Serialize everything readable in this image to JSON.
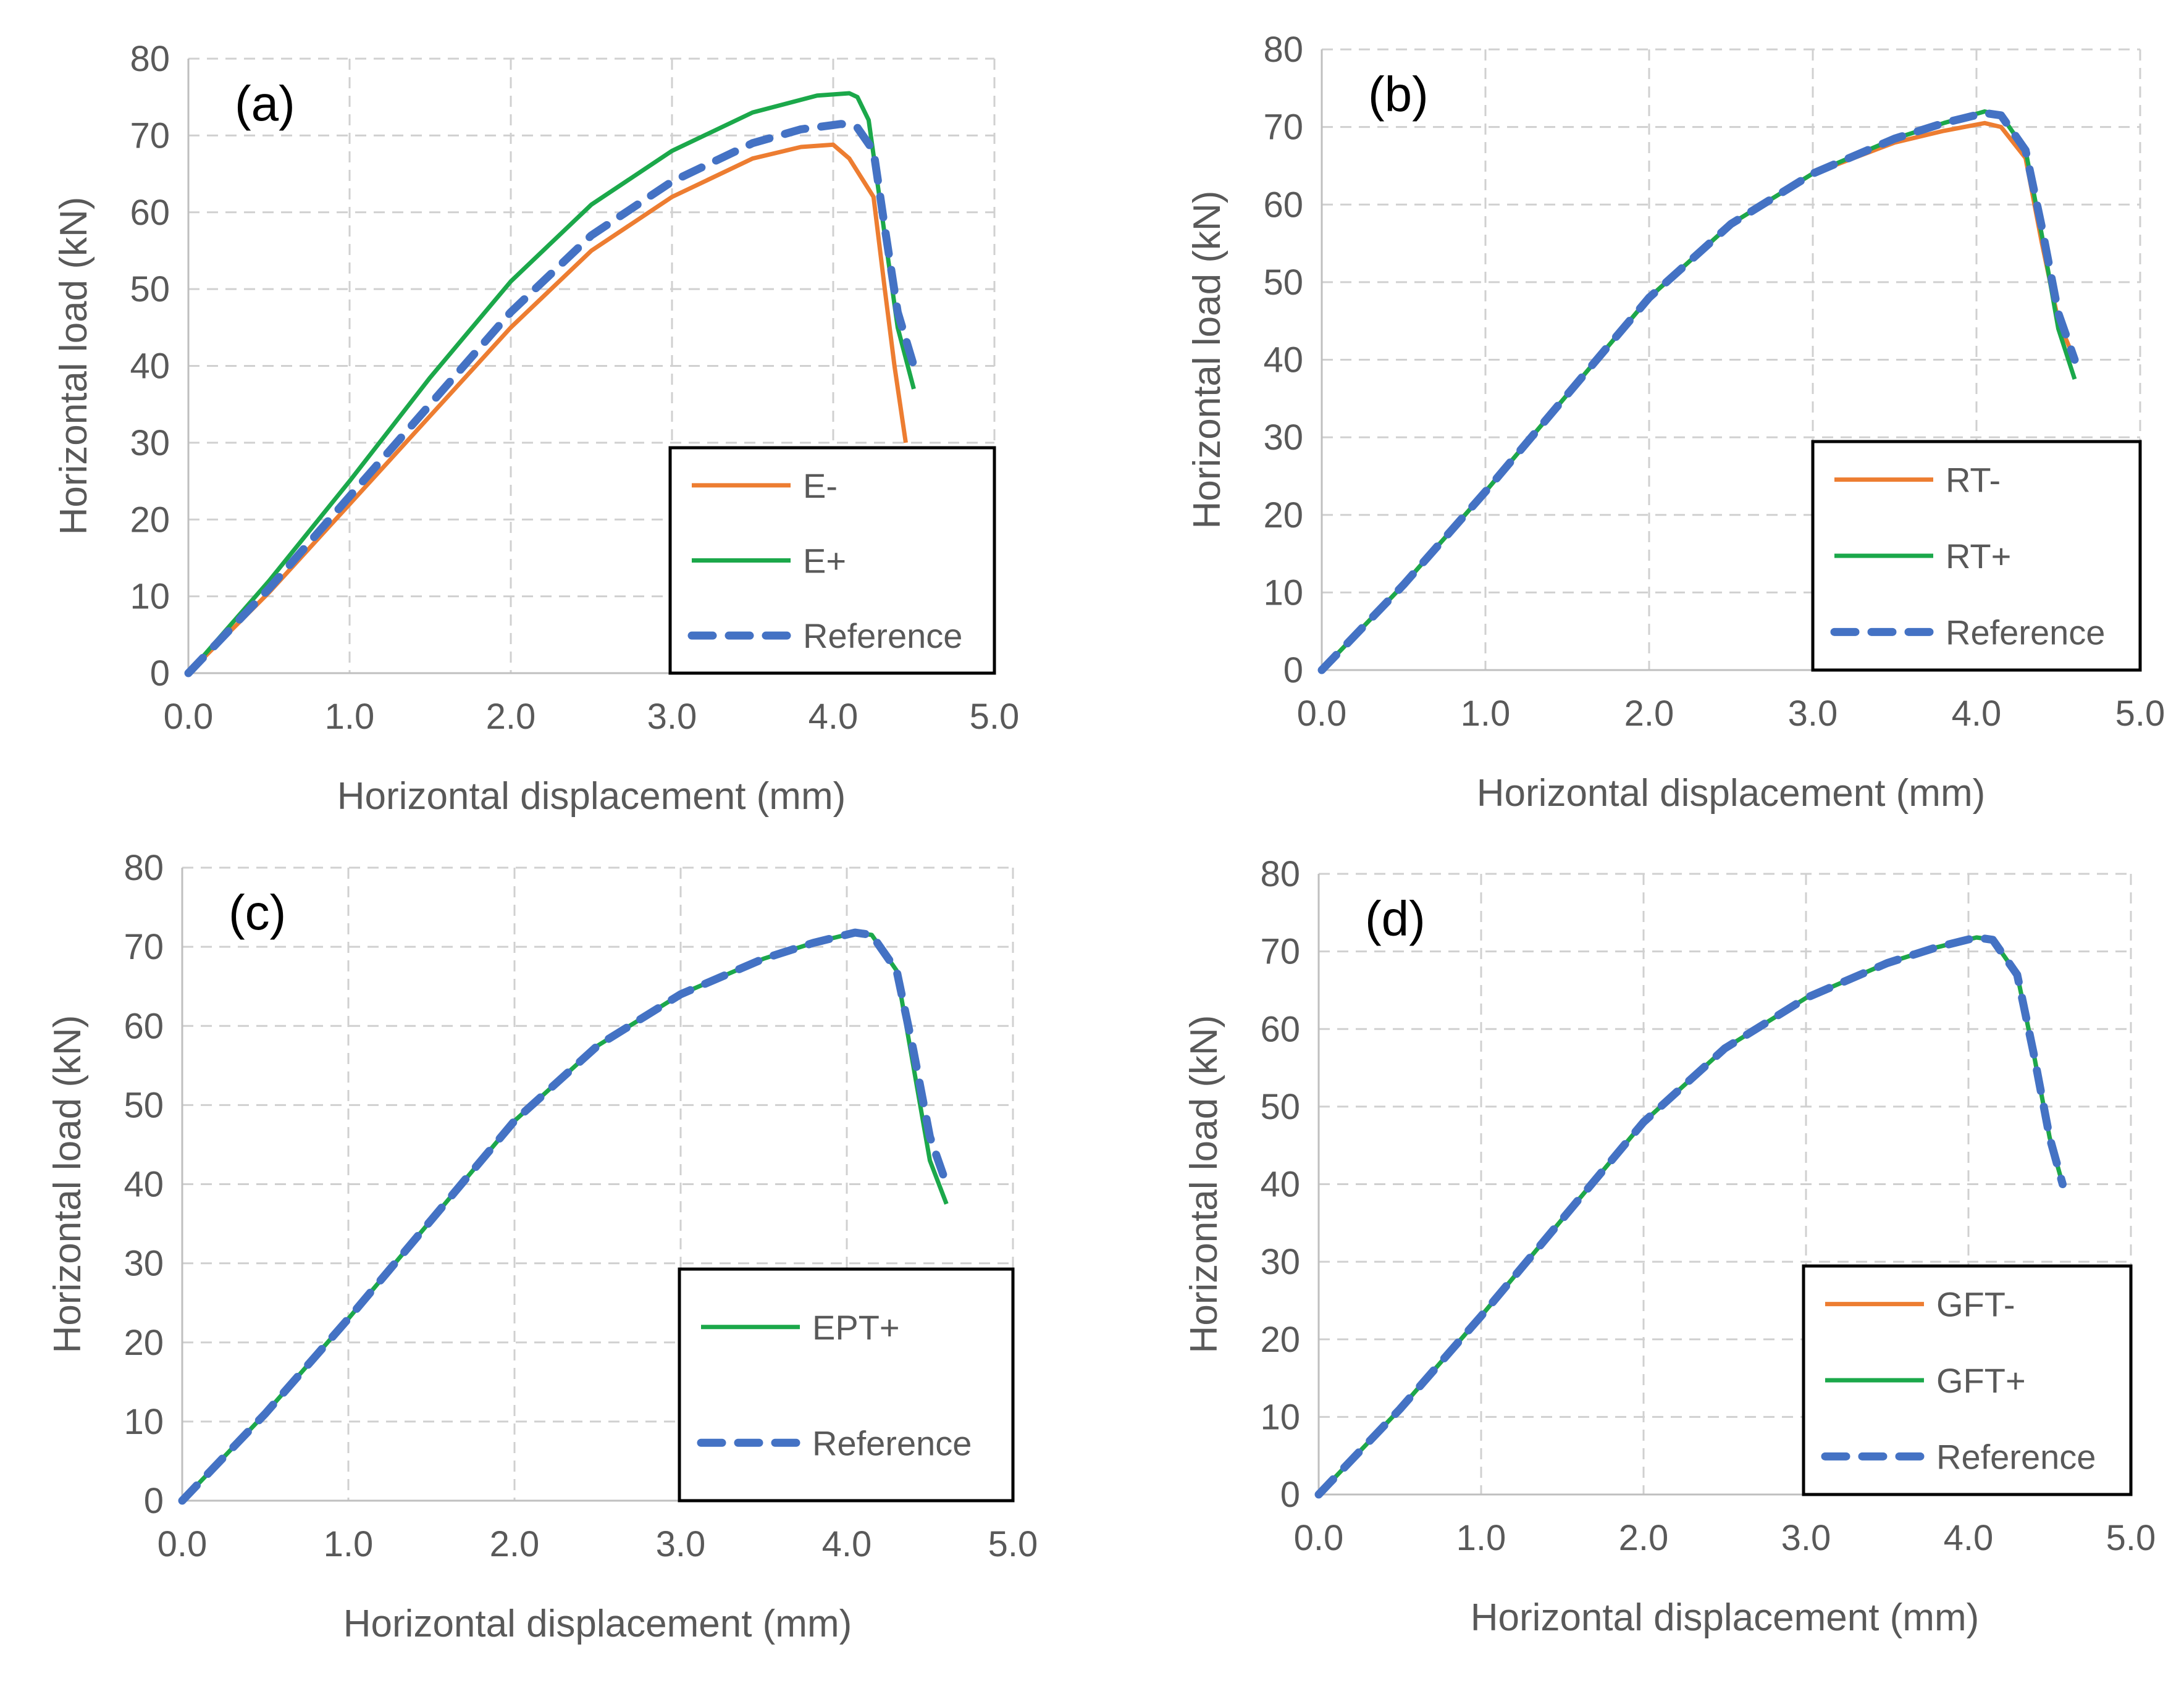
{
  "colors": {
    "minus": "#ED7D31",
    "plus": "#1BA84A",
    "reference": "#4472C4",
    "grid": "#d0d0d0",
    "text": "#595959"
  },
  "chart_data": [
    {
      "type": "line",
      "panel_label": "(a)",
      "xlabel": "Horizontal displacement (mm)",
      "ylabel": "Horizontal load (kN)",
      "xlim": [
        0,
        5
      ],
      "ylim": [
        0,
        80
      ],
      "xticks": [
        "0.0",
        "1.0",
        "2.0",
        "3.0",
        "4.0",
        "5.0"
      ],
      "yticks": [
        "0",
        "10",
        "20",
        "30",
        "40",
        "50",
        "60",
        "70",
        "80"
      ],
      "legend_position": "bottom-right",
      "series": [
        {
          "name": "E-",
          "color": "#ED7D31",
          "dashed": false,
          "x": [
            0,
            0.5,
            1.0,
            1.5,
            2.0,
            2.5,
            3.0,
            3.5,
            3.8,
            4.0,
            4.1,
            4.25,
            4.32,
            4.38,
            4.45
          ],
          "y": [
            0,
            10.5,
            22,
            33.5,
            45,
            55,
            62,
            67,
            68.5,
            68.8,
            67,
            62,
            50,
            40,
            30
          ]
        },
        {
          "name": "E+",
          "color": "#1BA84A",
          "dashed": false,
          "x": [
            0,
            0.5,
            1.0,
            1.5,
            2.0,
            2.5,
            3.0,
            3.5,
            3.9,
            4.1,
            4.15,
            4.22,
            4.3,
            4.4,
            4.5
          ],
          "y": [
            0,
            12,
            25,
            38.5,
            51,
            61,
            68,
            73,
            75.2,
            75.5,
            75,
            72,
            60,
            45,
            37
          ]
        },
        {
          "name": "Reference",
          "color": "#4472C4",
          "dashed": true,
          "x": [
            0,
            0.5,
            1.0,
            1.5,
            2.0,
            2.5,
            3.0,
            3.5,
            3.8,
            4.05,
            4.15,
            4.25,
            4.32,
            4.4,
            4.5
          ],
          "y": [
            0,
            11,
            23,
            35,
            47,
            57,
            64,
            69,
            70.8,
            71.5,
            71,
            68,
            58,
            47,
            40
          ]
        }
      ]
    },
    {
      "type": "line",
      "panel_label": "(b)",
      "xlabel": "Horizontal displacement (mm)",
      "ylabel": "Horizontal load (kN)",
      "xlim": [
        0,
        5
      ],
      "ylim": [
        0,
        80
      ],
      "xticks": [
        "0.0",
        "1.0",
        "2.0",
        "3.0",
        "4.0",
        "5.0"
      ],
      "yticks": [
        "0",
        "10",
        "20",
        "30",
        "40",
        "50",
        "60",
        "70",
        "80"
      ],
      "legend_position": "bottom-right",
      "series": [
        {
          "name": "RT-",
          "color": "#ED7D31",
          "dashed": false,
          "x": [
            0,
            0.5,
            1.0,
            1.5,
            2.0,
            2.5,
            3.0,
            3.5,
            3.8,
            4.05,
            4.15,
            4.3,
            4.4,
            4.5,
            4.6
          ],
          "y": [
            0,
            11,
            23,
            35.5,
            48,
            57.5,
            64,
            68,
            69.5,
            70.5,
            70,
            66,
            55,
            45,
            40
          ]
        },
        {
          "name": "RT+",
          "color": "#1BA84A",
          "dashed": false,
          "x": [
            0,
            0.5,
            1.0,
            1.5,
            2.0,
            2.5,
            3.0,
            3.5,
            3.8,
            4.05,
            4.15,
            4.3,
            4.4,
            4.5,
            4.6
          ],
          "y": [
            0,
            11,
            23,
            35.5,
            48,
            57.5,
            64,
            68.5,
            70.5,
            72,
            71.5,
            67,
            56,
            44,
            37.5
          ]
        },
        {
          "name": "Reference",
          "color": "#4472C4",
          "dashed": true,
          "x": [
            0,
            0.5,
            1.0,
            1.5,
            2.0,
            2.5,
            3.0,
            3.5,
            3.8,
            4.05,
            4.15,
            4.3,
            4.4,
            4.5,
            4.6
          ],
          "y": [
            0,
            11,
            23,
            35.5,
            48,
            57.5,
            64,
            68.5,
            70.5,
            71.8,
            71.5,
            67,
            57,
            46,
            40
          ]
        }
      ]
    },
    {
      "type": "line",
      "panel_label": "(c)",
      "xlabel": "Horizontal displacement (mm)",
      "ylabel": "Horizontal load (kN)",
      "xlim": [
        0,
        5
      ],
      "ylim": [
        0,
        80
      ],
      "xticks": [
        "0.0",
        "1.0",
        "2.0",
        "3.0",
        "4.0",
        "5.0"
      ],
      "yticks": [
        "0",
        "10",
        "20",
        "30",
        "40",
        "50",
        "60",
        "70",
        "80"
      ],
      "legend_position": "bottom-right",
      "series": [
        {
          "name": "EPT+",
          "color": "#1BA84A",
          "dashed": false,
          "x": [
            0,
            0.5,
            1.0,
            1.5,
            2.0,
            2.5,
            3.0,
            3.5,
            3.8,
            4.05,
            4.15,
            4.3,
            4.4,
            4.5,
            4.6
          ],
          "y": [
            0,
            11,
            23,
            35.5,
            48,
            57.5,
            64,
            68.5,
            70.5,
            71.8,
            71.5,
            67,
            55,
            43,
            37.5
          ]
        },
        {
          "name": "Reference",
          "color": "#4472C4",
          "dashed": true,
          "x": [
            0,
            0.5,
            1.0,
            1.5,
            2.0,
            2.5,
            3.0,
            3.5,
            3.8,
            4.05,
            4.15,
            4.3,
            4.4,
            4.5,
            4.6
          ],
          "y": [
            0,
            11,
            23,
            35.5,
            48,
            57.5,
            64,
            68.5,
            70.5,
            71.8,
            71.5,
            67,
            57,
            46,
            40
          ]
        }
      ]
    },
    {
      "type": "line",
      "panel_label": "(d)",
      "xlabel": "Horizontal displacement (mm)",
      "ylabel": "Horizontal load (kN)",
      "xlim": [
        0,
        5
      ],
      "ylim": [
        0,
        80
      ],
      "xticks": [
        "0.0",
        "1.0",
        "2.0",
        "3.0",
        "4.0",
        "5.0"
      ],
      "yticks": [
        "0",
        "10",
        "20",
        "30",
        "40",
        "50",
        "60",
        "70",
        "80"
      ],
      "legend_position": "bottom-right",
      "series": [
        {
          "name": "GFT-",
          "color": "#ED7D31",
          "dashed": false,
          "x": [
            0,
            0.5,
            1.0,
            1.5,
            2.0,
            2.5,
            3.0,
            3.5,
            3.8,
            4.05,
            4.15,
            4.3,
            4.4,
            4.5,
            4.58
          ],
          "y": [
            0,
            11,
            23,
            35.5,
            48,
            57.5,
            64,
            68.5,
            70.5,
            71.8,
            71.5,
            67,
            57,
            46,
            40
          ]
        },
        {
          "name": "GFT+",
          "color": "#1BA84A",
          "dashed": false,
          "x": [
            0,
            0.5,
            1.0,
            1.5,
            2.0,
            2.5,
            3.0,
            3.5,
            3.8,
            4.05,
            4.15,
            4.3,
            4.4,
            4.5,
            4.58
          ],
          "y": [
            0,
            11,
            23,
            35.5,
            48,
            57.5,
            64,
            68.5,
            70.5,
            71.8,
            71.5,
            67,
            57,
            46,
            40
          ]
        },
        {
          "name": "Reference",
          "color": "#4472C4",
          "dashed": true,
          "x": [
            0,
            0.5,
            1.0,
            1.5,
            2.0,
            2.5,
            3.0,
            3.5,
            3.8,
            4.05,
            4.15,
            4.3,
            4.4,
            4.5,
            4.58
          ],
          "y": [
            0,
            11,
            23,
            35.5,
            48,
            57.5,
            64,
            68.5,
            70.5,
            71.8,
            71.5,
            67,
            57,
            46,
            40
          ]
        }
      ]
    }
  ]
}
